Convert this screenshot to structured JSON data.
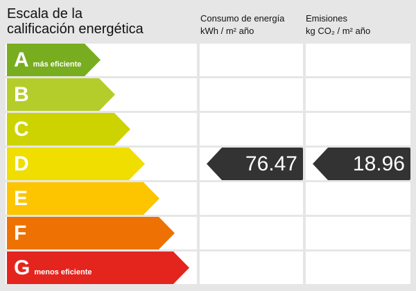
{
  "title_line1": "Escala de la",
  "title_line2": "calificación energética",
  "consumo": {
    "line1": "Consumo de energía",
    "line2": "kWh / m² año"
  },
  "emisiones": {
    "line1": "Emisiones",
    "line2": "kg CO₂ / m² año"
  },
  "ratings": [
    {
      "letter": "A",
      "label": "más eficiente",
      "color": "#78ad1f"
    },
    {
      "letter": "B",
      "label": "",
      "color": "#b5cd2b"
    },
    {
      "letter": "C",
      "label": "",
      "color": "#cdd300"
    },
    {
      "letter": "D",
      "label": "",
      "color": "#f0de00"
    },
    {
      "letter": "E",
      "label": "",
      "color": "#fcc500"
    },
    {
      "letter": "F",
      "label": "",
      "color": "#ed7203"
    },
    {
      "letter": "G",
      "label": "menos eficiente",
      "color": "#e3251e"
    }
  ],
  "current_rating": "D",
  "consumo_value": "76.47",
  "emisiones_value": "18.96"
}
